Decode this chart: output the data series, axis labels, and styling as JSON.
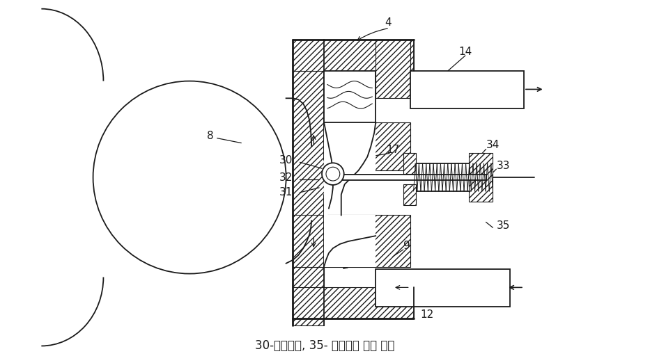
{
  "caption": "30-규제부재, 35- 슬라이드 변위 수단",
  "bg_color": "#ffffff",
  "lc": "#1a1a1a",
  "fig_width": 9.33,
  "fig_height": 5.22,
  "dpi": 100
}
